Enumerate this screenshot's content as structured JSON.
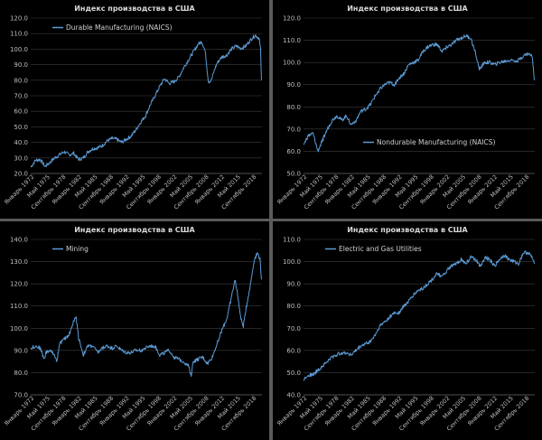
{
  "series_color": "#5b9bd5",
  "chart_data": [
    {
      "type": "line",
      "title": "Индекс производства в США",
      "series": [
        {
          "name": "Durable Manufacturing (NAICS)",
          "legend_pos": "top-left"
        }
      ],
      "ylim": [
        20,
        120
      ],
      "yticks": [
        "20.0",
        "30.0",
        "40.0",
        "50.0",
        "60.0",
        "70.0",
        "80.0",
        "90.0",
        "100.0",
        "110.0",
        "120.0"
      ],
      "xticks": [
        "Январь 1972",
        "Май 1975",
        "Сентябрь 1978",
        "Январь 1982",
        "Май 1985",
        "Сентябрь 1988",
        "Январь 1992",
        "Май 1995",
        "Сентябрь 1998",
        "Январь 2002",
        "Май 2005",
        "Сентябрь 2008",
        "Январь 2012",
        "Май 2015",
        "Сентябрь 2018"
      ],
      "x_start": 1972,
      "x_end": 2020.4,
      "points": [
        [
          1972,
          24
        ],
        [
          1973,
          28.5
        ],
        [
          1974,
          29
        ],
        [
          1975,
          24.5
        ],
        [
          1976,
          27
        ],
        [
          1977,
          30
        ],
        [
          1978,
          32
        ],
        [
          1979,
          34
        ],
        [
          1980,
          32
        ],
        [
          1981,
          33
        ],
        [
          1982,
          29
        ],
        [
          1983,
          30
        ],
        [
          1984,
          34
        ],
        [
          1985,
          36
        ],
        [
          1986,
          36.5
        ],
        [
          1987,
          38
        ],
        [
          1988,
          41
        ],
        [
          1989,
          42.5
        ],
        [
          1990,
          42
        ],
        [
          1991,
          40
        ],
        [
          1992,
          42
        ],
        [
          1993,
          44
        ],
        [
          1994,
          48
        ],
        [
          1995,
          53
        ],
        [
          1996,
          57
        ],
        [
          1997,
          64
        ],
        [
          1998,
          70
        ],
        [
          1999,
          76
        ],
        [
          2000,
          81
        ],
        [
          2001,
          78
        ],
        [
          2002,
          79
        ],
        [
          2003,
          82
        ],
        [
          2004,
          88
        ],
        [
          2005,
          93
        ],
        [
          2006,
          98
        ],
        [
          2007,
          103
        ],
        [
          2007.8,
          105
        ],
        [
          2008.5,
          99
        ],
        [
          2009.2,
          79
        ],
        [
          2009.8,
          80
        ],
        [
          2010.5,
          87
        ],
        [
          2011,
          91
        ],
        [
          2012,
          95
        ],
        [
          2013,
          96
        ],
        [
          2014,
          100
        ],
        [
          2015,
          102
        ],
        [
          2016,
          100.5
        ],
        [
          2017,
          102
        ],
        [
          2018,
          106
        ],
        [
          2019,
          109
        ],
        [
          2019.8,
          107
        ],
        [
          2020.1,
          100
        ],
        [
          2020.3,
          80
        ]
      ]
    },
    {
      "type": "line",
      "title": "Индекс производства в США",
      "series": [
        {
          "name": "Nondurable Manufacturing (NAICS)",
          "legend_pos": "center-right"
        }
      ],
      "ylim": [
        50,
        120
      ],
      "yticks": [
        "50.0",
        "60.0",
        "70.0",
        "80.0",
        "90.0",
        "100.0",
        "110.0",
        "120.0"
      ],
      "xticks": [
        "Январь 1972",
        "Май 1975",
        "Сентябрь 1978",
        "Январь 1982",
        "Май 1985",
        "Сентябрь 1988",
        "Январь 1992",
        "Май 1995",
        "Сентябрь 1998",
        "Январь 2002",
        "Май 2005",
        "Сентябрь 2008",
        "Январь 2012",
        "Май 2015",
        "Сентябрь 2018"
      ],
      "x_start": 1972,
      "x_end": 2020.4,
      "points": [
        [
          1972,
          63
        ],
        [
          1973,
          67
        ],
        [
          1974,
          68
        ],
        [
          1975,
          60
        ],
        [
          1976,
          65
        ],
        [
          1977,
          70
        ],
        [
          1978,
          74
        ],
        [
          1979,
          76
        ],
        [
          1980,
          74
        ],
        [
          1981,
          76
        ],
        [
          1982,
          72
        ],
        [
          1983,
          74
        ],
        [
          1984,
          78
        ],
        [
          1985,
          79
        ],
        [
          1986,
          81
        ],
        [
          1987,
          85
        ],
        [
          1988,
          88
        ],
        [
          1989,
          90
        ],
        [
          1990,
          91
        ],
        [
          1991,
          90
        ],
        [
          1992,
          93
        ],
        [
          1993,
          95
        ],
        [
          1994,
          99
        ],
        [
          1995,
          100
        ],
        [
          1996,
          101
        ],
        [
          1997,
          105
        ],
        [
          1998,
          107
        ],
        [
          1999,
          108
        ],
        [
          2000,
          108
        ],
        [
          2001,
          105
        ],
        [
          2002,
          107
        ],
        [
          2003,
          108
        ],
        [
          2004,
          110
        ],
        [
          2005,
          111
        ],
        [
          2006,
          112
        ],
        [
          2007,
          111
        ],
        [
          2008,
          104
        ],
        [
          2008.8,
          97
        ],
        [
          2009.5,
          99
        ],
        [
          2010,
          100
        ],
        [
          2011,
          100
        ],
        [
          2012,
          99
        ],
        [
          2013,
          100
        ],
        [
          2014,
          100.5
        ],
        [
          2015,
          101
        ],
        [
          2016,
          101
        ],
        [
          2017,
          101
        ],
        [
          2018,
          103
        ],
        [
          2019,
          104
        ],
        [
          2019.8,
          103
        ],
        [
          2020.1,
          98
        ],
        [
          2020.3,
          92
        ]
      ]
    },
    {
      "type": "line",
      "title": "Индекс производства в США",
      "series": [
        {
          "name": "Mining",
          "legend_pos": "top-left"
        }
      ],
      "ylim": [
        70,
        140
      ],
      "yticks": [
        "70.0",
        "80.0",
        "90.0",
        "100.0",
        "110.0",
        "120.0",
        "130.0",
        "140.0"
      ],
      "xticks": [
        "Январь 1972",
        "Май 1975",
        "Сентябрь 1978",
        "Январь 1982",
        "Май 1985",
        "Сентябрь 1988",
        "Январь 1992",
        "Май 1995",
        "Сентябрь 1998",
        "Январь 2002",
        "Май 2005",
        "Сентябрь 2008",
        "Январь 2012",
        "Май 2015",
        "Сентябрь 2018"
      ],
      "x_start": 1972,
      "x_end": 2020.4,
      "points": [
        [
          1972,
          91
        ],
        [
          1973,
          92
        ],
        [
          1974,
          91
        ],
        [
          1974.8,
          86
        ],
        [
          1975.2,
          89
        ],
        [
          1976,
          90
        ],
        [
          1977,
          88
        ],
        [
          1977.5,
          85
        ],
        [
          1978,
          93
        ],
        [
          1979,
          95
        ],
        [
          1980,
          97
        ],
        [
          1981,
          103
        ],
        [
          1981.5,
          105
        ],
        [
          1982,
          96
        ],
        [
          1983,
          88
        ],
        [
          1984,
          92
        ],
        [
          1985,
          92
        ],
        [
          1986,
          89
        ],
        [
          1987,
          91
        ],
        [
          1988,
          92
        ],
        [
          1989,
          91
        ],
        [
          1990,
          92
        ],
        [
          1991,
          90
        ],
        [
          1992,
          89
        ],
        [
          1993,
          89
        ],
        [
          1994,
          90
        ],
        [
          1995,
          90
        ],
        [
          1996,
          91
        ],
        [
          1997,
          92
        ],
        [
          1998,
          92
        ],
        [
          1999,
          88
        ],
        [
          2000,
          89
        ],
        [
          2001,
          90
        ],
        [
          2002,
          87
        ],
        [
          2003,
          86
        ],
        [
          2004,
          85
        ],
        [
          2005,
          83
        ],
        [
          2005.6,
          79
        ],
        [
          2006,
          85
        ],
        [
          2007,
          86
        ],
        [
          2008,
          87
        ],
        [
          2009,
          84
        ],
        [
          2010,
          87
        ],
        [
          2011,
          93
        ],
        [
          2012,
          99
        ],
        [
          2013,
          104
        ],
        [
          2014,
          114
        ],
        [
          2014.8,
          122
        ],
        [
          2015.3,
          115
        ],
        [
          2016,
          104
        ],
        [
          2016.5,
          101
        ],
        [
          2017,
          108
        ],
        [
          2018,
          120
        ],
        [
          2018.8,
          131
        ],
        [
          2019.5,
          134
        ],
        [
          2020,
          131
        ],
        [
          2020.3,
          122
        ]
      ]
    },
    {
      "type": "line",
      "title": "Индекс производства в США",
      "series": [
        {
          "name": "Electric and Gas Utilities",
          "legend_pos": "top-left"
        }
      ],
      "ylim": [
        40,
        110
      ],
      "yticks": [
        "40.0",
        "50.0",
        "60.0",
        "70.0",
        "80.0",
        "90.0",
        "100.0",
        "110.0"
      ],
      "xticks": [
        "Январь 1972",
        "Май 1975",
        "Сентябрь 1978",
        "Январь 1982",
        "Май 1985",
        "Сентябрь 1988",
        "Январь 1992",
        "Май 1995",
        "Сентябрь 1998",
        "Январь 2002",
        "Май 2005",
        "Сентябрь 2008",
        "Январь 2012",
        "Май 2015",
        "Сентябрь 2018"
      ],
      "x_start": 1972,
      "x_end": 2020.4,
      "points": [
        [
          1972,
          47
        ],
        [
          1973,
          49
        ],
        [
          1974,
          49
        ],
        [
          1975,
          51
        ],
        [
          1976,
          53
        ],
        [
          1977,
          55
        ],
        [
          1978,
          57
        ],
        [
          1979,
          58
        ],
        [
          1980,
          59
        ],
        [
          1981,
          59
        ],
        [
          1982,
          58
        ],
        [
          1983,
          60
        ],
        [
          1984,
          62
        ],
        [
          1985,
          63
        ],
        [
          1986,
          64
        ],
        [
          1987,
          67
        ],
        [
          1988,
          71
        ],
        [
          1989,
          73
        ],
        [
          1990,
          75
        ],
        [
          1991,
          77
        ],
        [
          1992,
          77
        ],
        [
          1993,
          80
        ],
        [
          1994,
          82
        ],
        [
          1995,
          85
        ],
        [
          1996,
          87
        ],
        [
          1997,
          88
        ],
        [
          1998,
          90
        ],
        [
          1999,
          92
        ],
        [
          2000,
          95
        ],
        [
          2001,
          93
        ],
        [
          2002,
          96
        ],
        [
          2003,
          98
        ],
        [
          2004,
          99
        ],
        [
          2005,
          101
        ],
        [
          2006,
          99
        ],
        [
          2007,
          102
        ],
        [
          2008,
          101
        ],
        [
          2009,
          98
        ],
        [
          2010,
          102
        ],
        [
          2011,
          101
        ],
        [
          2012,
          98
        ],
        [
          2013,
          101
        ],
        [
          2014,
          103
        ],
        [
          2015,
          101
        ],
        [
          2016,
          100
        ],
        [
          2017,
          99
        ],
        [
          2018,
          104
        ],
        [
          2019,
          104
        ],
        [
          2019.8,
          102
        ],
        [
          2020.3,
          99
        ]
      ]
    }
  ]
}
